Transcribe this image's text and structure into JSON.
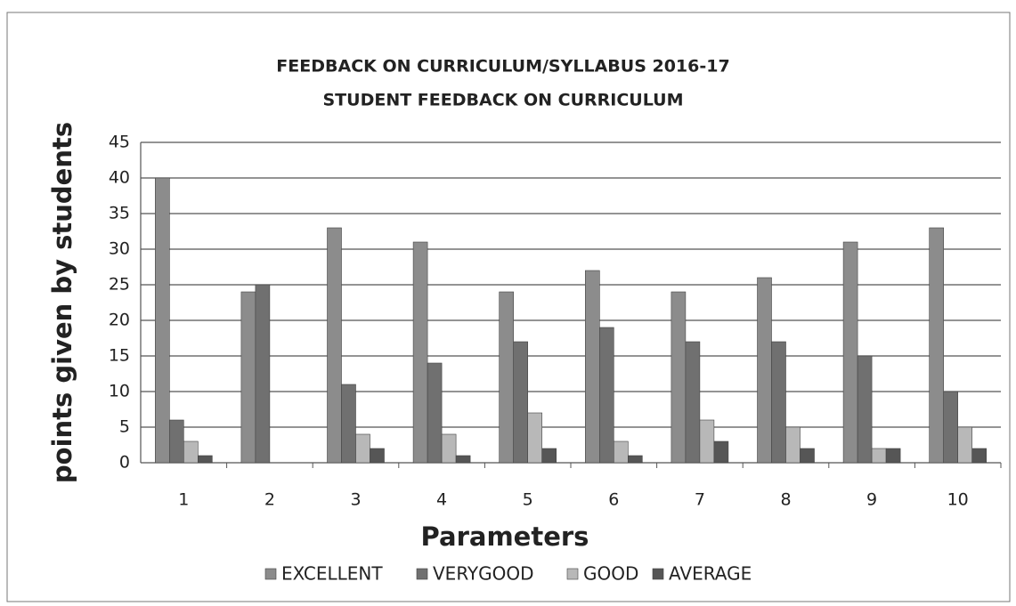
{
  "chart_data": {
    "type": "bar",
    "title": "FEEDBACK ON CURRICULUM/SYLLABUS 2016-17",
    "subtitle": "STUDENT FEEDBACK ON CURRICULUM",
    "y_label": "points given by students",
    "x_label": "Parameters",
    "categories": [
      "1",
      "2",
      "3",
      "4",
      "5",
      "6",
      "7",
      "8",
      "9",
      "10"
    ],
    "series": [
      {
        "name": "EXCELLENT",
        "color": "#8c8c8c",
        "values": [
          40,
          24,
          33,
          31,
          24,
          27,
          24,
          26,
          31,
          33
        ]
      },
      {
        "name": "VERYGOOD",
        "color": "#707070",
        "values": [
          6,
          25,
          11,
          14,
          17,
          19,
          17,
          17,
          15,
          10
        ]
      },
      {
        "name": "GOOD",
        "color": "#b8b8b8",
        "values": [
          3,
          0,
          4,
          4,
          7,
          3,
          6,
          5,
          2,
          5
        ]
      },
      {
        "name": "AVERAGE",
        "color": "#565656",
        "values": [
          1,
          0,
          2,
          1,
          2,
          1,
          3,
          2,
          2,
          2
        ]
      }
    ],
    "ylim": [
      0,
      45
    ],
    "yticks": [
      0,
      5,
      10,
      15,
      20,
      25,
      30,
      35,
      40,
      45
    ],
    "grid": true,
    "legend": "bottom"
  }
}
